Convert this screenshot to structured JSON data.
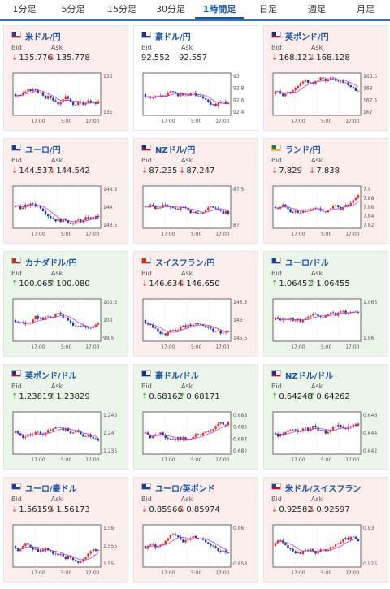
{
  "tabs": [
    {
      "label": "1分足",
      "active": false
    },
    {
      "label": "5分足",
      "active": false
    },
    {
      "label": "15分足",
      "active": false
    },
    {
      "label": "30分足",
      "active": false
    },
    {
      "label": "1時間足",
      "active": true
    },
    {
      "label": "日足",
      "active": false
    },
    {
      "label": "週足",
      "active": false
    },
    {
      "label": "月足",
      "active": false
    }
  ],
  "labels": {
    "bid": "Bid",
    "ask": "Ask"
  },
  "colors": {
    "up_candle": "#e03030",
    "down_candle": "#1f3ca8",
    "ma_line": "#c43bcf",
    "down_bg": "#fdeeee",
    "up_bg": "#ebf5ea",
    "down_arrow": "#d83b3b",
    "up_arrow": "#2f9a2f"
  },
  "cards": [
    {
      "name": "米ドル/円",
      "flag": "us",
      "direction": "down",
      "bid": "135.776",
      "ask": "135.778",
      "y_ticks": [
        "136",
        "135"
      ],
      "x_ticks": [
        "17:00",
        "5:00",
        "17:00"
      ]
    },
    {
      "name": "豪ドル/円",
      "flag": "au",
      "direction": "plain",
      "bid": "92.552",
      "ask": "92.557",
      "y_ticks": [
        "93",
        "92.8",
        "92.6",
        "92.4"
      ],
      "x_ticks": [
        "17:00",
        "5:00",
        "17:00"
      ]
    },
    {
      "name": "英ポンド/円",
      "flag": "gb",
      "direction": "down",
      "bid": "168.121",
      "ask": "168.128",
      "y_ticks": [
        "168.5",
        "168",
        "167.5",
        "167"
      ],
      "x_ticks": [
        "17:00",
        "5:00",
        "17:00"
      ]
    },
    {
      "name": "ユーロ/円",
      "flag": "eu",
      "direction": "down",
      "bid": "144.537",
      "ask": "144.542",
      "y_ticks": [
        "144.5",
        "144",
        "143.5"
      ],
      "x_ticks": [
        "17:00",
        "5:00",
        "17:00"
      ]
    },
    {
      "name": "NZドル/円",
      "flag": "nz",
      "direction": "down",
      "bid": "87.235",
      "ask": "87.247",
      "y_ticks": [
        "87.5",
        "87"
      ],
      "x_ticks": [
        "17:00",
        "5:00",
        "17:00"
      ]
    },
    {
      "name": "ランド/円",
      "flag": "za",
      "direction": "down",
      "bid": "7.829",
      "ask": "7.838",
      "y_ticks": [
        "7.9",
        "7.88",
        "7.86",
        "7.84",
        "7.82"
      ],
      "x_ticks": [
        "17:00",
        "5:00",
        "17:00"
      ]
    },
    {
      "name": "カナダドル/円",
      "flag": "ca",
      "direction": "up",
      "bid": "100.065",
      "ask": "100.080",
      "y_ticks": [
        "100.5",
        "100",
        "99.5"
      ],
      "x_ticks": [
        "17:00",
        "5:00",
        "17:00"
      ]
    },
    {
      "name": "スイスフラン/円",
      "flag": "ch",
      "direction": "down",
      "bid": "146.634",
      "ask": "146.650",
      "y_ticks": [
        "146.5",
        "146",
        "145.5"
      ],
      "x_ticks": [
        "17:00",
        "5:00",
        "17:00"
      ]
    },
    {
      "name": "ユーロ/ドル",
      "flag": "eu",
      "direction": "up",
      "bid": "1.06451",
      "ask": "1.06455",
      "y_ticks": [
        "1.065",
        "1.06"
      ],
      "x_ticks": [
        "17:00",
        "5:00",
        "17:00"
      ]
    },
    {
      "name": "英ポンド/ドル",
      "flag": "gb",
      "direction": "up",
      "bid": "1.23819",
      "ask": "1.23829",
      "y_ticks": [
        "1.245",
        "1.24",
        "1.235"
      ],
      "x_ticks": [
        "17:00",
        "5:00",
        "17:00"
      ]
    },
    {
      "name": "豪ドル/ドル",
      "flag": "au",
      "direction": "up",
      "bid": "0.68162",
      "ask": "0.68171",
      "y_ticks": [
        "0.688",
        "0.686",
        "0.684",
        "0.682"
      ],
      "x_ticks": [
        "17:00",
        "5:00",
        "17:00"
      ]
    },
    {
      "name": "NZドル/ドル",
      "flag": "nz",
      "direction": "up",
      "bid": "0.64248",
      "ask": "0.64262",
      "y_ticks": [
        "0.646",
        "0.644",
        "0.642"
      ],
      "x_ticks": [
        "17:00",
        "5:00",
        "17:00"
      ]
    },
    {
      "name": "ユーロ/豪ドル",
      "flag": "eu",
      "direction": "down",
      "bid": "1.56159",
      "ask": "1.56173",
      "y_ticks": [
        "1.56",
        "1.555",
        "1.55"
      ],
      "x_ticks": [
        "17:00",
        "5:00",
        "17:00"
      ]
    },
    {
      "name": "ユーロ/英ポンド",
      "flag": "eu",
      "direction": "down",
      "bid": "0.85966",
      "ask": "0.85974",
      "y_ticks": [
        "0.86",
        "0.858"
      ],
      "x_ticks": [
        "17:00",
        "5:00",
        "17:00"
      ]
    },
    {
      "name": "米ドル/スイスフラン",
      "flag": "us",
      "direction": "down",
      "bid": "0.92582",
      "ask": "0.92597",
      "y_ticks": [
        "0.93",
        "0.925"
      ],
      "x_ticks": [
        "17:00",
        "5:00",
        "17:00"
      ]
    }
  ]
}
